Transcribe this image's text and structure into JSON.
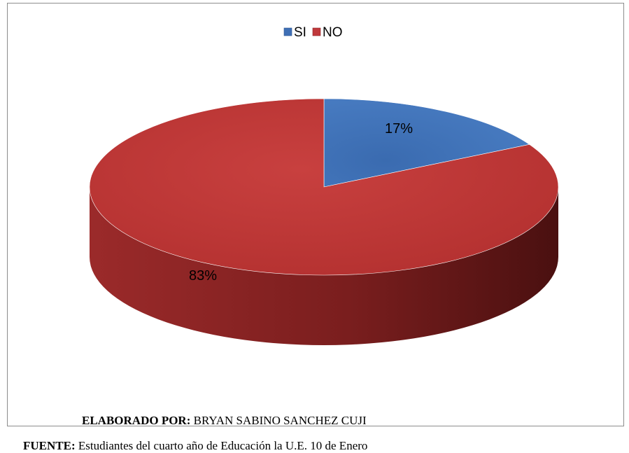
{
  "chart_data": {
    "type": "pie",
    "style": "3d",
    "categories": [
      "SI",
      "NO"
    ],
    "values": [
      17,
      83
    ],
    "data_labels": [
      "17%",
      "83%"
    ],
    "colors": [
      "#3f6fb5",
      "#c0393c"
    ],
    "legend_position": "top"
  },
  "credits": {
    "author_label": "ELABORADO POR:",
    "author_value": " BRYAN SABINO SANCHEZ CUJI",
    "source_label": "FUENTE:",
    "source_value": " Estudiantes del cuarto año de Educación la U.E. 10 de Enero"
  }
}
